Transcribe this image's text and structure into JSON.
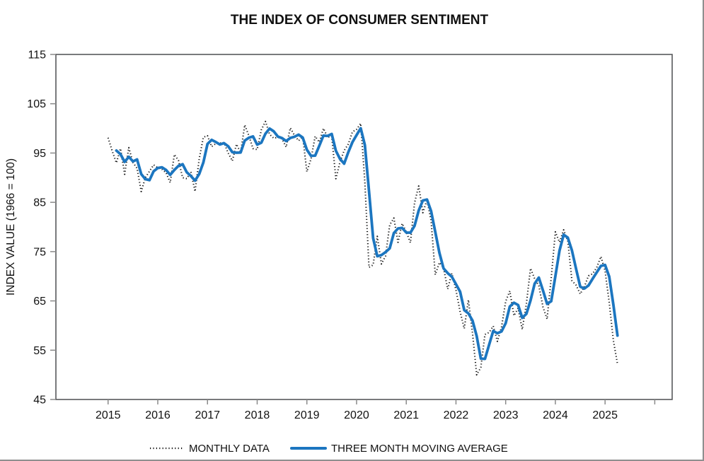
{
  "title": "THE INDEX OF CONSUMER SENTIMENT",
  "y_axis_title": "INDEX VALUE (1966 = 100)",
  "legend": {
    "monthly_label": "MONTHLY DATA",
    "moving_average_label": "THREE MONTH MOVING AVERAGE"
  },
  "colors": {
    "monthly_line": "#111111",
    "moving_average_line": "#1c76c0",
    "axis_box": "#58595b",
    "tick": "#8a8a8a",
    "label_text": "#111111",
    "background": "#ffffff"
  },
  "chart_data": {
    "type": "line",
    "title": "THE INDEX OF CONSUMER SENTIMENT",
    "xlabel": "",
    "ylabel": "INDEX VALUE (1966 = 100)",
    "x_unit": "month",
    "x_start": "2015-01",
    "x_end": "2025-04",
    "xticks": [
      2015,
      2016,
      2017,
      2018,
      2019,
      2020,
      2021,
      2022,
      2023,
      2024,
      2025
    ],
    "xticks_minor": [
      2026
    ],
    "yticks": [
      45,
      55,
      65,
      75,
      85,
      95,
      105,
      115
    ],
    "ylim": [
      45,
      115
    ],
    "xlim_years": [
      2013.95,
      2026.35
    ],
    "grid": false,
    "legend_position": "bottom",
    "series": [
      {
        "name": "MONTHLY DATA",
        "style": "dotted",
        "color": "#111111",
        "monthly_by_year": [
          {
            "year": 2015,
            "values": [
              98.1,
              95.4,
              93.0,
              95.9,
              90.7,
              96.1,
              93.1,
              91.9,
              87.2,
              90.0,
              91.3,
              92.6
            ]
          },
          {
            "year": 2016,
            "values": [
              92.0,
              91.7,
              91.0,
              89.0,
              94.7,
              93.5,
              90.0,
              89.8,
              91.2,
              87.2,
              93.8,
              98.2
            ]
          },
          {
            "year": 2017,
            "values": [
              98.5,
              96.3,
              96.9,
              97.0,
              97.1,
              95.0,
              93.4,
              96.8,
              95.1,
              100.7,
              98.5,
              95.9
            ]
          },
          {
            "year": 2018,
            "values": [
              95.7,
              99.7,
              101.4,
              98.8,
              98.0,
              98.2,
              97.9,
              96.2,
              100.1,
              98.6,
              97.5,
              98.3
            ]
          },
          {
            "year": 2019,
            "values": [
              91.2,
              93.8,
              98.4,
              97.2,
              100.0,
              98.2,
              98.4,
              89.8,
              93.2,
              95.5,
              96.8,
              99.3
            ]
          },
          {
            "year": 2020,
            "values": [
              99.8,
              101.0,
              89.1,
              71.8,
              72.3,
              78.1,
              72.5,
              74.1,
              80.4,
              81.8,
              76.9,
              80.7
            ]
          },
          {
            "year": 2021,
            "values": [
              79.0,
              76.8,
              84.9,
              88.3,
              82.9,
              85.5,
              81.2,
              70.3,
              72.8,
              71.7,
              67.4,
              70.6
            ]
          },
          {
            "year": 2022,
            "values": [
              67.2,
              62.8,
              59.4,
              65.2,
              58.4,
              50.0,
              51.5,
              58.2,
              58.6,
              59.9,
              56.8,
              59.7
            ]
          },
          {
            "year": 2023,
            "values": [
              64.9,
              67.0,
              62.0,
              63.5,
              59.2,
              64.4,
              71.6,
              69.5,
              68.1,
              63.8,
              61.3,
              69.7
            ]
          },
          {
            "year": 2024,
            "values": [
              79.0,
              76.9,
              79.4,
              77.2,
              69.1,
              68.2,
              66.4,
              67.9,
              70.1,
              70.5,
              71.8,
              74.0
            ]
          },
          {
            "year": 2025,
            "values": [
              71.1,
              64.7,
              57.0,
              52.2
            ]
          }
        ]
      },
      {
        "name": "THREE MONTH MOVING AVERAGE",
        "style": "solid",
        "color": "#1c76c0",
        "derived_from": "3-month trailing moving average of MONTHLY DATA",
        "window": 3
      }
    ]
  }
}
